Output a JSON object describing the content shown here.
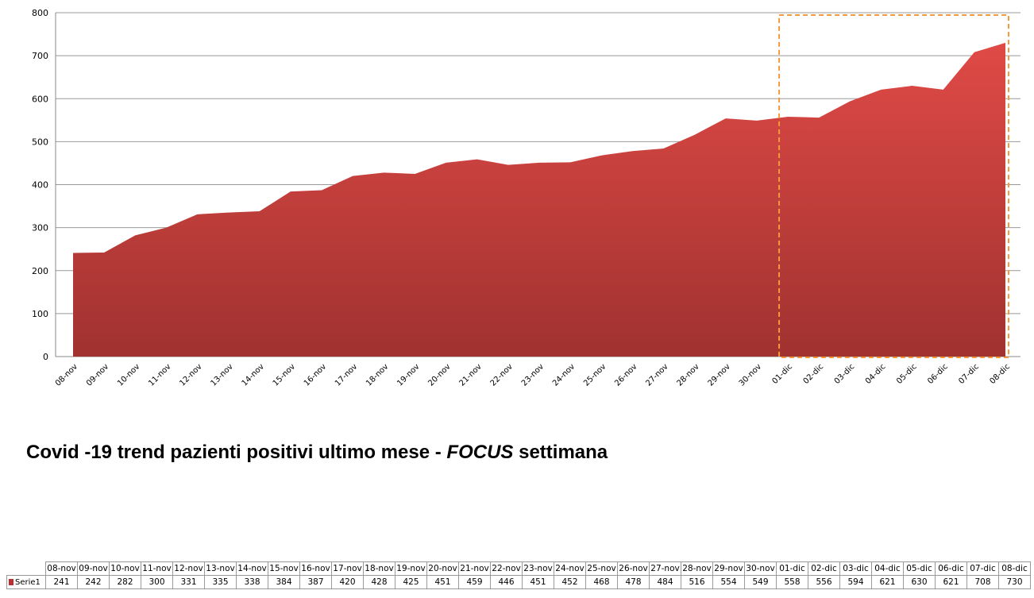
{
  "chart_data": {
    "type": "area",
    "title_parts": {
      "before": "Covid -19 trend pazienti positivi ultimo mese - ",
      "emph": "FOCUS",
      "after": " settimana"
    },
    "categories": [
      "08-nov",
      "09-nov",
      "10-nov",
      "11-nov",
      "12-nov",
      "13-nov",
      "14-nov",
      "15-nov",
      "16-nov",
      "17-nov",
      "18-nov",
      "19-nov",
      "20-nov",
      "21-nov",
      "22-nov",
      "23-nov",
      "24-nov",
      "25-nov",
      "26-nov",
      "27-nov",
      "28-nov",
      "29-nov",
      "30-nov",
      "01-dic",
      "02-dic",
      "03-dic",
      "04-dic",
      "05-dic",
      "06-dic",
      "07-dic",
      "08-dic"
    ],
    "series": [
      {
        "name": "Serie1",
        "values": [
          241,
          242,
          282,
          300,
          331,
          335,
          338,
          384,
          387,
          420,
          428,
          425,
          451,
          459,
          446,
          451,
          452,
          468,
          478,
          484,
          516,
          554,
          549,
          558,
          556,
          594,
          621,
          630,
          621,
          708,
          730
        ],
        "color": "#c84040"
      }
    ],
    "ylim": [
      0,
      800
    ],
    "yticks": [
      0,
      100,
      200,
      300,
      400,
      500,
      600,
      700,
      800
    ],
    "grid": true,
    "focus_range": [
      "01-dic",
      "08-dic"
    ],
    "focus_color": "#f59a3c",
    "data_table": true
  }
}
